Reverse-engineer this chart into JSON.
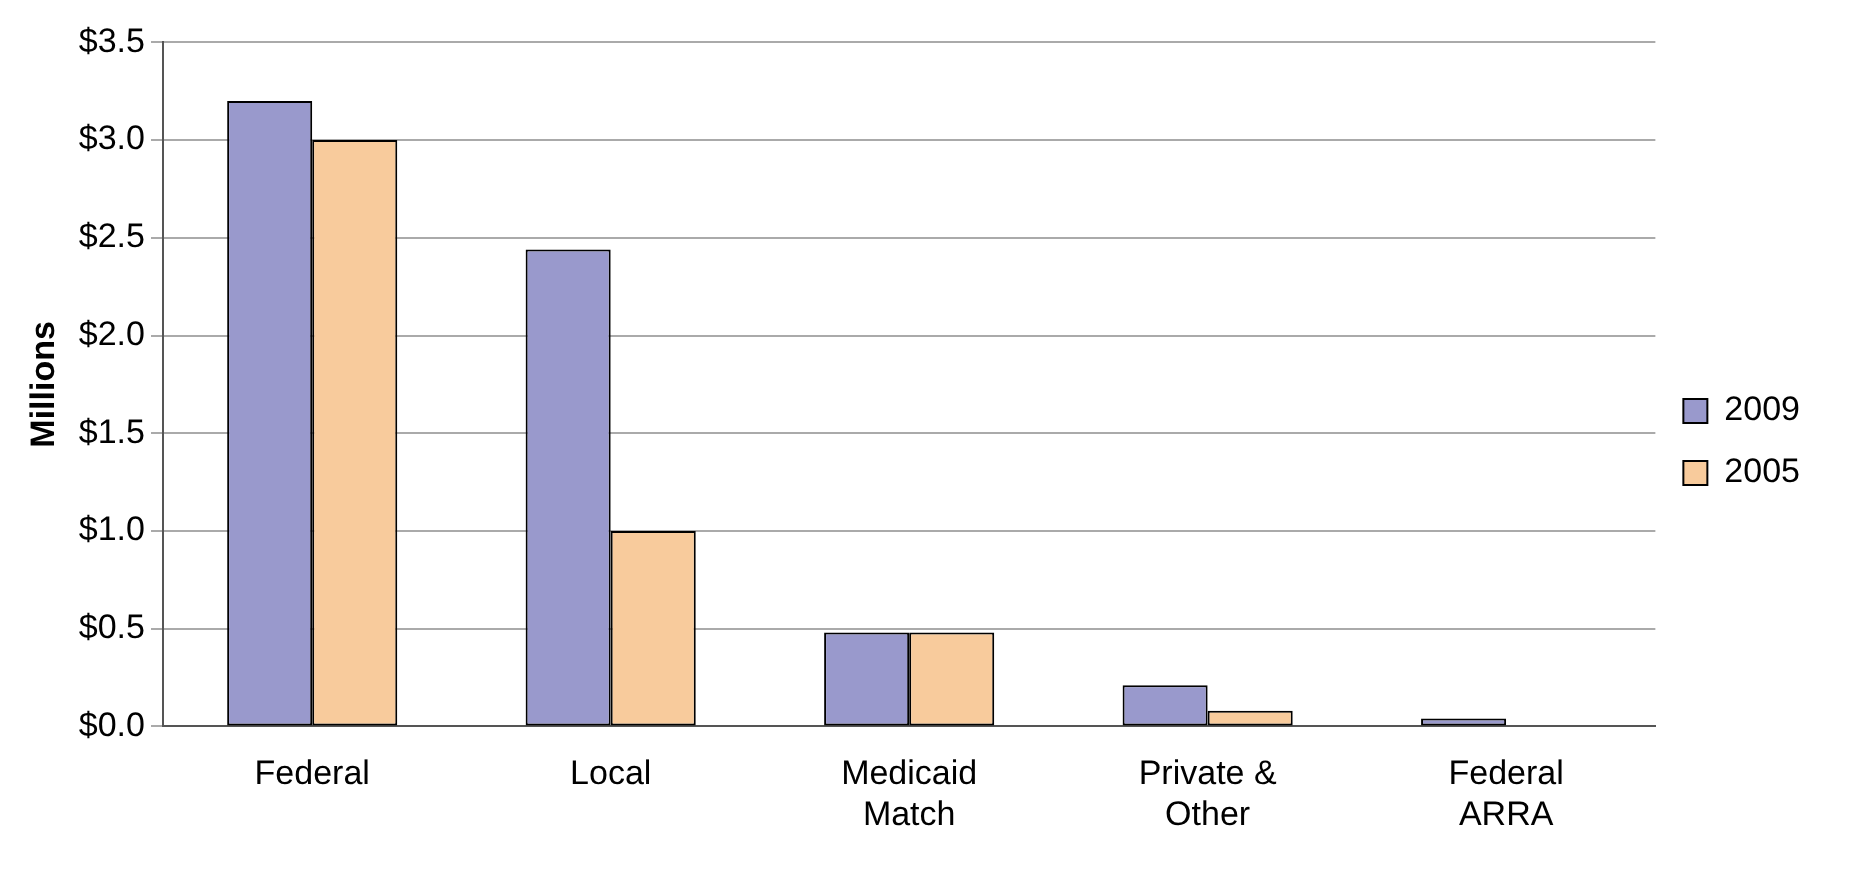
{
  "chart_data": {
    "type": "bar",
    "ylabel": "Millions",
    "categories": [
      "Federal",
      "Local",
      "Medicaid Match",
      "Private & Other",
      "Federal ARRA"
    ],
    "series": [
      {
        "name": "2009",
        "color": "#9999cc",
        "values": [
          3.2,
          2.44,
          0.48,
          0.21,
          0.04
        ]
      },
      {
        "name": "2005",
        "color": "#f8cb9c",
        "values": [
          3.0,
          1.0,
          0.48,
          0.08,
          null
        ]
      }
    ],
    "ylim": [
      0,
      3.5
    ],
    "yticks": [
      {
        "value": 0,
        "label": "$0.0"
      },
      {
        "value": 0.5,
        "label": "$0.5"
      },
      {
        "value": 1,
        "label": "$1.0"
      },
      {
        "value": 1.5,
        "label": "$1.5"
      },
      {
        "value": 2,
        "label": "$2.0"
      },
      {
        "value": 2.5,
        "label": "$2.5"
      },
      {
        "value": 3,
        "label": "$3.0"
      },
      {
        "value": 3.5,
        "label": "$3.5"
      }
    ],
    "grid": "y",
    "legend": "right"
  }
}
